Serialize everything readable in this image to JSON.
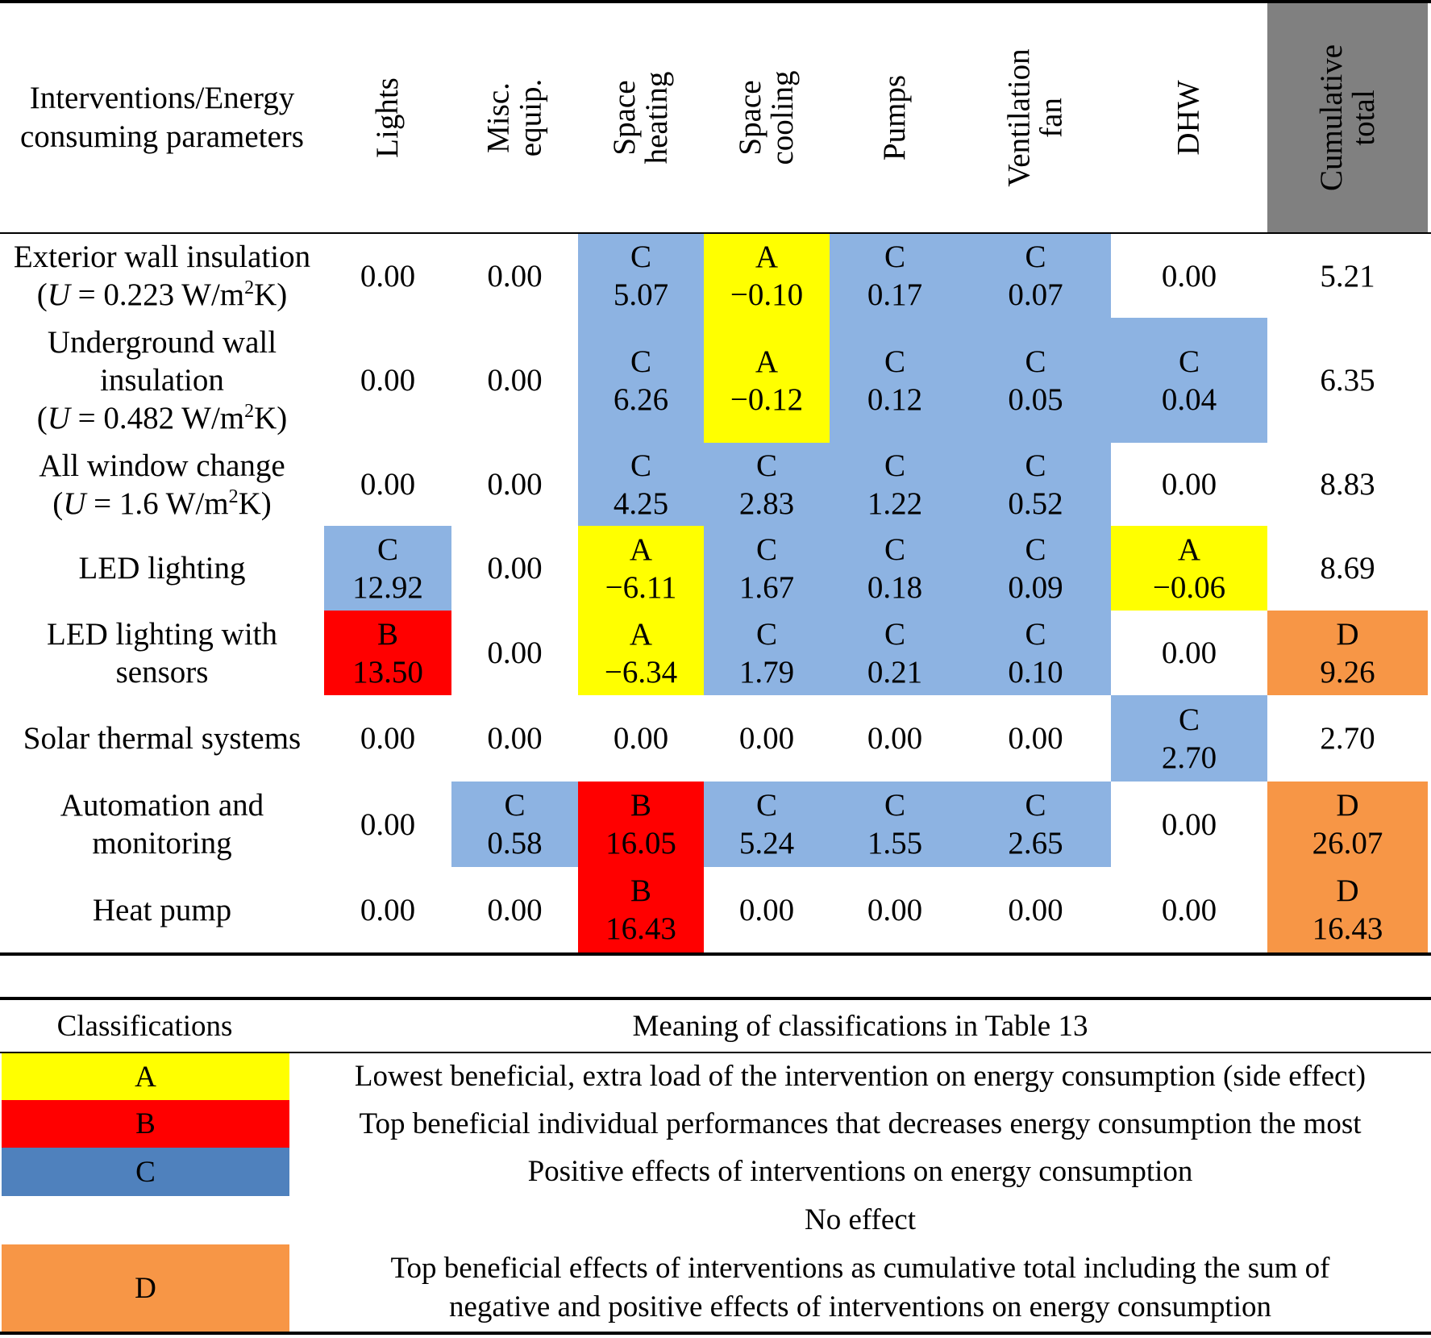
{
  "table": {
    "corner_header": "Interventions/Energy\nconsuming parameters",
    "columns": [
      "Lights",
      "Misc. equip.",
      "Space heating",
      "Space cooling",
      "Pumps",
      "Ventilation\nfan",
      "DHW",
      "Cumulative\ntotal"
    ],
    "rows": [
      {
        "label": "Exterior wall insulation",
        "u_value": "0.223",
        "cells": [
          {
            "cls": "",
            "value": "0.00"
          },
          {
            "cls": "",
            "value": "0.00"
          },
          {
            "cls": "C",
            "value": "5.07"
          },
          {
            "cls": "A",
            "value": "−0.10"
          },
          {
            "cls": "C",
            "value": "0.17"
          },
          {
            "cls": "C",
            "value": "0.07"
          },
          {
            "cls": "",
            "value": "0.00"
          },
          {
            "cls": "",
            "value": "5.21"
          }
        ]
      },
      {
        "label": "Underground wall\ninsulation",
        "u_value": "0.482",
        "cells": [
          {
            "cls": "",
            "value": "0.00"
          },
          {
            "cls": "",
            "value": "0.00"
          },
          {
            "cls": "C",
            "value": "6.26"
          },
          {
            "cls": "A",
            "value": "−0.12"
          },
          {
            "cls": "C",
            "value": "0.12"
          },
          {
            "cls": "C",
            "value": "0.05"
          },
          {
            "cls": "C",
            "value": "0.04"
          },
          {
            "cls": "",
            "value": "6.35"
          }
        ]
      },
      {
        "label": "All window change",
        "u_value": "1.6",
        "cells": [
          {
            "cls": "",
            "value": "0.00"
          },
          {
            "cls": "",
            "value": "0.00"
          },
          {
            "cls": "C",
            "value": "4.25"
          },
          {
            "cls": "C",
            "value": "2.83"
          },
          {
            "cls": "C",
            "value": "1.22"
          },
          {
            "cls": "C",
            "value": "0.52"
          },
          {
            "cls": "",
            "value": "0.00"
          },
          {
            "cls": "",
            "value": "8.83"
          }
        ]
      },
      {
        "label": "LED lighting",
        "u_value": "",
        "cells": [
          {
            "cls": "C",
            "value": "12.92"
          },
          {
            "cls": "",
            "value": "0.00"
          },
          {
            "cls": "A",
            "value": "−6.11"
          },
          {
            "cls": "C",
            "value": "1.67"
          },
          {
            "cls": "C",
            "value": "0.18"
          },
          {
            "cls": "C",
            "value": "0.09"
          },
          {
            "cls": "A",
            "value": "−0.06"
          },
          {
            "cls": "",
            "value": "8.69"
          }
        ]
      },
      {
        "label": "LED lighting with\nsensors",
        "u_value": "",
        "cells": [
          {
            "cls": "B",
            "value": "13.50"
          },
          {
            "cls": "",
            "value": "0.00"
          },
          {
            "cls": "A",
            "value": "−6.34"
          },
          {
            "cls": "C",
            "value": "1.79"
          },
          {
            "cls": "C",
            "value": "0.21"
          },
          {
            "cls": "C",
            "value": "0.10"
          },
          {
            "cls": "",
            "value": "0.00"
          },
          {
            "cls": "D",
            "value": "9.26"
          }
        ]
      },
      {
        "label": "Solar thermal systems",
        "u_value": "",
        "cells": [
          {
            "cls": "",
            "value": "0.00"
          },
          {
            "cls": "",
            "value": "0.00"
          },
          {
            "cls": "",
            "value": "0.00"
          },
          {
            "cls": "",
            "value": "0.00"
          },
          {
            "cls": "",
            "value": "0.00"
          },
          {
            "cls": "",
            "value": "0.00"
          },
          {
            "cls": "C",
            "value": "2.70"
          },
          {
            "cls": "",
            "value": "2.70"
          }
        ]
      },
      {
        "label": "Automation and\nmonitoring",
        "u_value": "",
        "cells": [
          {
            "cls": "",
            "value": "0.00"
          },
          {
            "cls": "C",
            "value": "0.58"
          },
          {
            "cls": "B",
            "value": "16.05"
          },
          {
            "cls": "C",
            "value": "5.24"
          },
          {
            "cls": "C",
            "value": "1.55"
          },
          {
            "cls": "C",
            "value": "2.65"
          },
          {
            "cls": "",
            "value": "0.00"
          },
          {
            "cls": "D",
            "value": "26.07"
          }
        ]
      },
      {
        "label": "Heat pump",
        "u_value": "",
        "cells": [
          {
            "cls": "",
            "value": "0.00"
          },
          {
            "cls": "",
            "value": "0.00"
          },
          {
            "cls": "B",
            "value": "16.43"
          },
          {
            "cls": "",
            "value": "0.00"
          },
          {
            "cls": "",
            "value": "0.00"
          },
          {
            "cls": "",
            "value": "0.00"
          },
          {
            "cls": "",
            "value": "0.00"
          },
          {
            "cls": "D",
            "value": "16.43"
          }
        ]
      }
    ]
  },
  "legend": {
    "col1_header": "Classifications",
    "col2_header": "Meaning of classifications in Table 13",
    "rows": [
      {
        "code": "A",
        "meaning": "Lowest beneficial, extra load of the intervention on energy consumption (side effect)"
      },
      {
        "code": "B",
        "meaning": "Top beneficial individual performances that decreases energy consumption the most"
      },
      {
        "code": "C",
        "meaning": "Positive effects of interventions on energy consumption"
      },
      {
        "code": "",
        "meaning": "No effect"
      },
      {
        "code": "D",
        "meaning": "Top beneficial effects of interventions as cumulative total including the sum of\nnegative and positive effects of interventions on energy consumption"
      }
    ]
  },
  "colors": {
    "A": "#ffff00",
    "B": "#ff0000",
    "C_table": "#8db3e2",
    "C_legend": "#4f81bd",
    "D": "#f79646",
    "cumulative_header": "#808080"
  }
}
